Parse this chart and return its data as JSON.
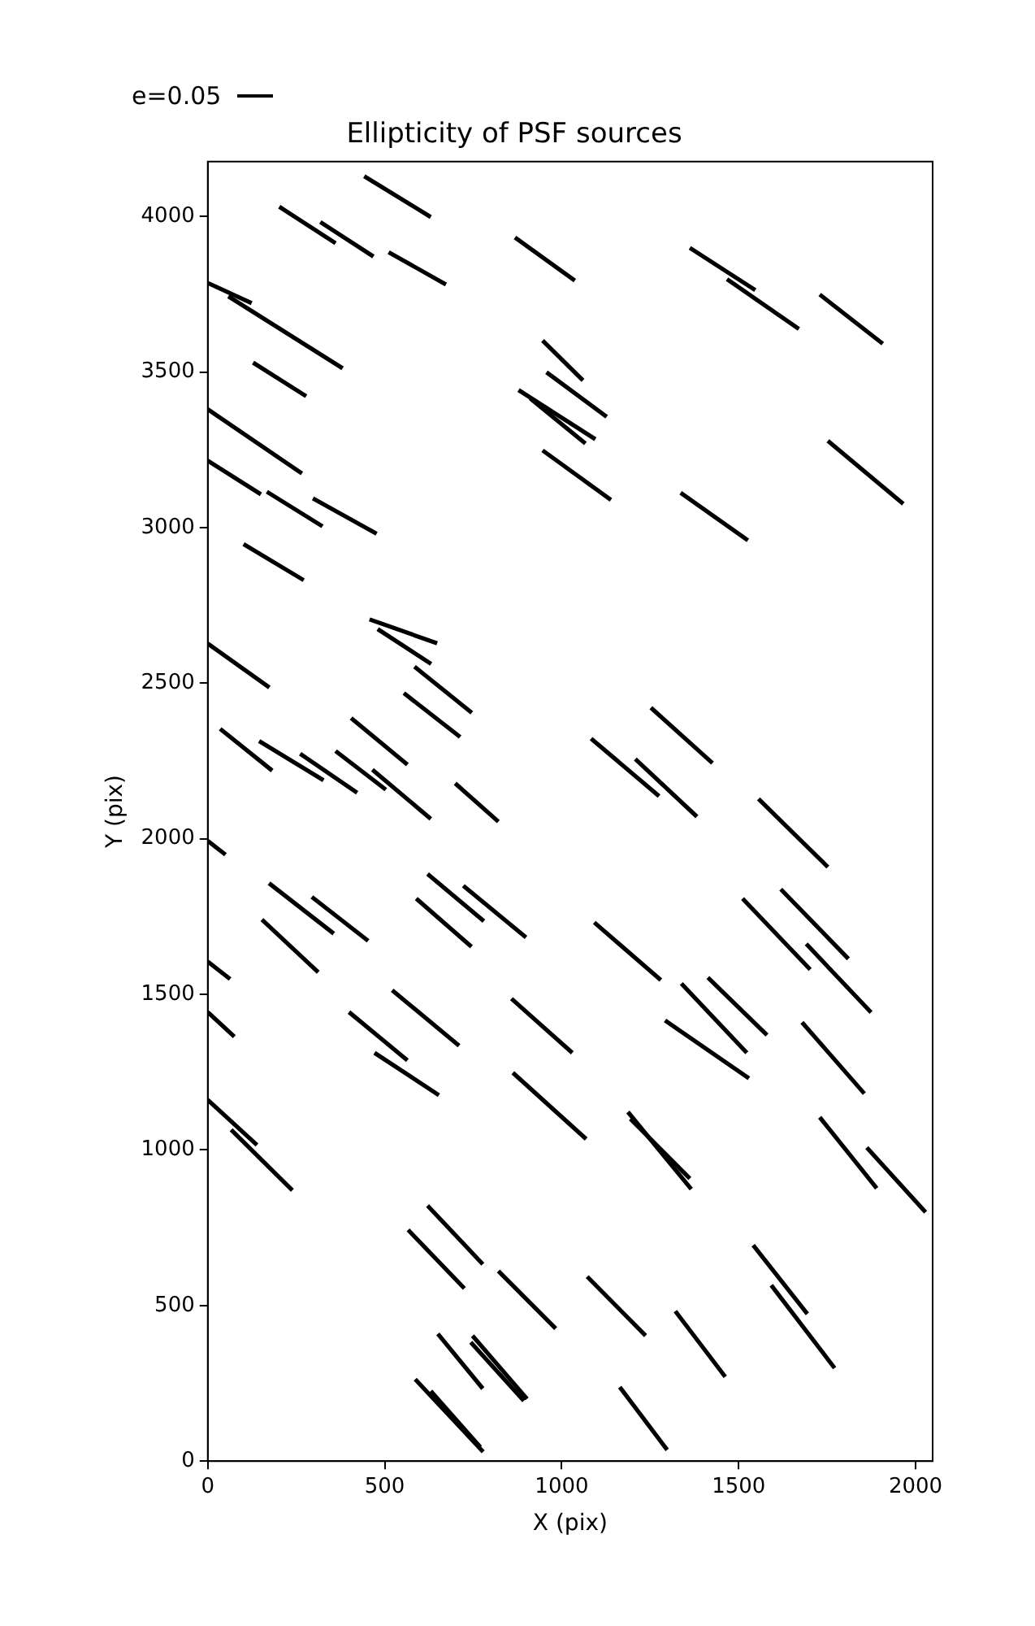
{
  "chart_data": {
    "type": "line",
    "title": "Ellipticity of PSF sources",
    "xlabel": "X (pix)",
    "ylabel": "Y (pix)",
    "annotations": [
      "e=0.05"
    ],
    "xlim": [
      0,
      2048
    ],
    "ylim": [
      0,
      4176
    ],
    "xticks": [
      0,
      500,
      1000,
      1500,
      2000
    ],
    "yticks": [
      0,
      500,
      1000,
      1500,
      2000,
      2500,
      3000,
      3500,
      4000
    ],
    "grid": false,
    "legend": false,
    "marker": "none",
    "line_style": "solid",
    "series": [
      {
        "color": "#000000",
        "x": [
          442,
          630
        ],
        "values": [
          4129,
          3998
        ]
      },
      {
        "color": "#000000",
        "x": [
          202,
          361
        ],
        "values": [
          4031,
          3914
        ]
      },
      {
        "color": "#000000",
        "x": [
          318,
          468
        ],
        "values": [
          3982,
          3871
        ]
      },
      {
        "color": "#000000",
        "x": [
          511,
          673
        ],
        "values": [
          3885,
          3781
        ]
      },
      {
        "color": "#000000",
        "x": [
          0,
          124
        ],
        "values": [
          3786,
          3721
        ]
      },
      {
        "color": "#000000",
        "x": [
          58,
          381
        ],
        "values": [
          3743,
          3512
        ]
      },
      {
        "color": "#000000",
        "x": [
          128,
          278
        ],
        "values": [
          3530,
          3422
        ]
      },
      {
        "color": "#000000",
        "x": [
          0,
          266
        ],
        "values": [
          3380,
          3174
        ]
      },
      {
        "color": "#000000",
        "x": [
          0,
          150
        ],
        "values": [
          3215,
          3107
        ]
      },
      {
        "color": "#000000",
        "x": [
          167,
          324
        ],
        "values": [
          3115,
          3004
        ]
      },
      {
        "color": "#000000",
        "x": [
          297,
          477
        ],
        "values": [
          3094,
          2980
        ]
      },
      {
        "color": "#000000",
        "x": [
          101,
          271
        ],
        "values": [
          2947,
          2831
        ]
      },
      {
        "color": "#000000",
        "x": [
          868,
          1037
        ],
        "values": [
          3932,
          3794
        ]
      },
      {
        "color": "#000000",
        "x": [
          946,
          1060
        ],
        "values": [
          3601,
          3473
        ]
      },
      {
        "color": "#000000",
        "x": [
          957,
          1127
        ],
        "values": [
          3499,
          3356
        ]
      },
      {
        "color": "#000000",
        "x": [
          878,
          1095
        ],
        "values": [
          3442,
          3284
        ]
      },
      {
        "color": "#000000",
        "x": [
          911,
          1067
        ],
        "values": [
          3415,
          3270
        ]
      },
      {
        "color": "#000000",
        "x": [
          946,
          1139
        ],
        "values": [
          3248,
          3089
        ]
      },
      {
        "color": "#000000",
        "x": [
          1362,
          1547
        ],
        "values": [
          3899,
          3763
        ]
      },
      {
        "color": "#000000",
        "x": [
          1467,
          1670
        ],
        "values": [
          3798,
          3638
        ]
      },
      {
        "color": "#000000",
        "x": [
          1729,
          1907
        ],
        "values": [
          3749,
          3591
        ]
      },
      {
        "color": "#000000",
        "x": [
          1752,
          1965
        ],
        "values": [
          3279,
          3076
        ]
      },
      {
        "color": "#000000",
        "x": [
          1336,
          1526
        ],
        "values": [
          3112,
          2959
        ]
      },
      {
        "color": "#000000",
        "x": [
          457,
          648
        ],
        "values": [
          2705,
          2628
        ]
      },
      {
        "color": "#000000",
        "x": [
          480,
          631
        ],
        "values": [
          2674,
          2562
        ]
      },
      {
        "color": "#000000",
        "x": [
          584,
          746
        ],
        "values": [
          2553,
          2405
        ]
      },
      {
        "color": "#000000",
        "x": [
          554,
          713
        ],
        "values": [
          2468,
          2327
        ]
      },
      {
        "color": "#000000",
        "x": [
          405,
          564
        ],
        "values": [
          2388,
          2238
        ]
      },
      {
        "color": "#000000",
        "x": [
          35,
          182
        ],
        "values": [
          2353,
          2219
        ]
      },
      {
        "color": "#000000",
        "x": [
          145,
          327
        ],
        "values": [
          2314,
          2188
        ]
      },
      {
        "color": "#000000",
        "x": [
          261,
          422
        ],
        "values": [
          2273,
          2148
        ]
      },
      {
        "color": "#000000",
        "x": [
          361,
          503
        ],
        "values": [
          2282,
          2158
        ]
      },
      {
        "color": "#000000",
        "x": [
          465,
          630
        ],
        "values": [
          2222,
          2064
        ]
      },
      {
        "color": "#000000",
        "x": [
          699,
          821
        ],
        "values": [
          2178,
          2055
        ]
      },
      {
        "color": "#000000",
        "x": [
          0,
          174
        ],
        "values": [
          2627,
          2486
        ]
      },
      {
        "color": "#000000",
        "x": [
          0,
          50
        ],
        "values": [
          1993,
          1949
        ]
      },
      {
        "color": "#000000",
        "x": [
          173,
          356
        ],
        "values": [
          1857,
          1695
        ]
      },
      {
        "color": "#000000",
        "x": [
          294,
          453
        ],
        "values": [
          1813,
          1672
        ]
      },
      {
        "color": "#000000",
        "x": [
          153,
          312
        ],
        "values": [
          1740,
          1571
        ]
      },
      {
        "color": "#000000",
        "x": [
          621,
          780
        ],
        "values": [
          1887,
          1735
        ]
      },
      {
        "color": "#000000",
        "x": [
          722,
          899
        ],
        "values": [
          1849,
          1683
        ]
      },
      {
        "color": "#000000",
        "x": [
          589,
          745
        ],
        "values": [
          1808,
          1653
        ]
      },
      {
        "color": "#000000",
        "x": [
          0,
          63
        ],
        "values": [
          1605,
          1549
        ]
      },
      {
        "color": "#000000",
        "x": [
          0,
          75
        ],
        "values": [
          1443,
          1364
        ]
      },
      {
        "color": "#000000",
        "x": [
          399,
          564
        ],
        "values": [
          1443,
          1288
        ]
      },
      {
        "color": "#000000",
        "x": [
          521,
          710
        ],
        "values": [
          1513,
          1335
        ]
      },
      {
        "color": "#000000",
        "x": [
          858,
          1030
        ],
        "values": [
          1486,
          1312
        ]
      },
      {
        "color": "#000000",
        "x": [
          1252,
          1426
        ],
        "values": [
          2421,
          2243
        ]
      },
      {
        "color": "#000000",
        "x": [
          1083,
          1275
        ],
        "values": [
          2322,
          2137
        ]
      },
      {
        "color": "#000000",
        "x": [
          1208,
          1382
        ],
        "values": [
          2256,
          2071
        ]
      },
      {
        "color": "#000000",
        "x": [
          1556,
          1752
        ],
        "values": [
          2128,
          1909
        ]
      },
      {
        "color": "#000000",
        "x": [
          1511,
          1702
        ],
        "values": [
          1808,
          1580
        ]
      },
      {
        "color": "#000000",
        "x": [
          1619,
          1810
        ],
        "values": [
          1838,
          1614
        ]
      },
      {
        "color": "#000000",
        "x": [
          1691,
          1874
        ],
        "values": [
          1662,
          1442
        ]
      },
      {
        "color": "#000000",
        "x": [
          1092,
          1280
        ],
        "values": [
          1731,
          1546
        ]
      },
      {
        "color": "#000000",
        "x": [
          1338,
          1523
        ],
        "values": [
          1535,
          1312
        ]
      },
      {
        "color": "#000000",
        "x": [
          1413,
          1580
        ],
        "values": [
          1554,
          1369
        ]
      },
      {
        "color": "#000000",
        "x": [
          1292,
          1529
        ],
        "values": [
          1416,
          1230
        ]
      },
      {
        "color": "#000000",
        "x": [
          1679,
          1855
        ],
        "values": [
          1410,
          1181
        ]
      },
      {
        "color": "#000000",
        "x": [
          471,
          653
        ],
        "values": [
          1312,
          1176
        ]
      },
      {
        "color": "#000000",
        "x": [
          862,
          1069
        ],
        "values": [
          1248,
          1035
        ]
      },
      {
        "color": "#000000",
        "x": [
          0,
          139
        ],
        "values": [
          1161,
          1016
        ]
      },
      {
        "color": "#000000",
        "x": [
          66,
          239
        ],
        "values": [
          1065,
          870
        ]
      },
      {
        "color": "#000000",
        "x": [
          621,
          777
        ],
        "values": [
          821,
          633
        ]
      },
      {
        "color": "#000000",
        "x": [
          566,
          725
        ],
        "values": [
          743,
          555
        ]
      },
      {
        "color": "#000000",
        "x": [
          821,
          983
        ],
        "values": [
          611,
          426
        ]
      },
      {
        "color": "#000000",
        "x": [
          650,
          777
        ],
        "values": [
          409,
          233
        ]
      },
      {
        "color": "#000000",
        "x": [
          748,
          902
        ],
        "values": [
          403,
          200
        ]
      },
      {
        "color": "#000000",
        "x": [
          743,
          893
        ],
        "values": [
          382,
          194
        ]
      },
      {
        "color": "#000000",
        "x": [
          586,
          778
        ],
        "values": [
          263,
          30
        ]
      },
      {
        "color": "#000000",
        "x": [
          630,
          770
        ],
        "values": [
          225,
          45
        ]
      },
      {
        "color": "#000000",
        "x": [
          1187,
          1366
        ],
        "values": [
          1122,
          874
        ]
      },
      {
        "color": "#000000",
        "x": [
          1194,
          1362
        ],
        "values": [
          1100,
          908
        ]
      },
      {
        "color": "#000000",
        "x": [
          1729,
          1890
        ],
        "values": [
          1105,
          877
        ]
      },
      {
        "color": "#000000",
        "x": [
          1862,
          2028
        ],
        "values": [
          1008,
          800
        ]
      },
      {
        "color": "#000000",
        "x": [
          1541,
          1694
        ],
        "values": [
          694,
          473
        ]
      },
      {
        "color": "#000000",
        "x": [
          1592,
          1771
        ],
        "values": [
          565,
          299
        ]
      },
      {
        "color": "#000000",
        "x": [
          1072,
          1237
        ],
        "values": [
          593,
          403
        ]
      },
      {
        "color": "#000000",
        "x": [
          1321,
          1462
        ],
        "values": [
          482,
          271
        ]
      },
      {
        "color": "#000000",
        "x": [
          1164,
          1298
        ],
        "values": [
          238,
          36
        ]
      }
    ]
  }
}
